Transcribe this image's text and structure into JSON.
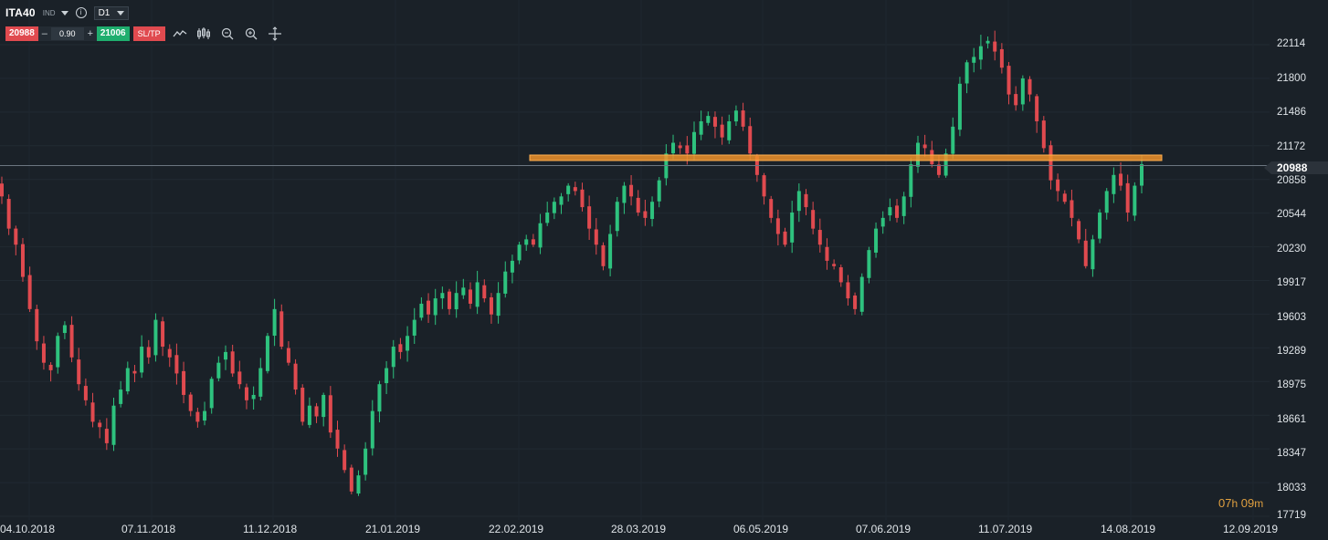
{
  "header": {
    "symbol": "ITA40",
    "symbol_type": "IND",
    "timeframe": "D1",
    "info_symbol": "i"
  },
  "trade_panel": {
    "sell_price": "20988",
    "minus": "–",
    "lot_size": "0.90",
    "plus": "+",
    "buy_price": "21006",
    "sltp_label": "SL/TP"
  },
  "toolbar_icons": [
    "line-chart-icon",
    "candlestick-icon",
    "zoom-out-icon",
    "zoom-in-icon",
    "crosshair-icon"
  ],
  "price_axis": {
    "labels": [
      "22114",
      "21800",
      "21486",
      "21172",
      "20858",
      "20544",
      "20230",
      "19917",
      "19603",
      "19289",
      "18975",
      "18661",
      "18347",
      "18033",
      "17719"
    ],
    "current_price": "20988"
  },
  "time_axis": {
    "labels": [
      "04.10.2018",
      "07.11.2018",
      "11.12.2018",
      "21.01.2019",
      "22.02.2019",
      "28.03.2019",
      "06.05.2019",
      "07.06.2019",
      "11.07.2019",
      "14.08.2019",
      "12.09.2019"
    ]
  },
  "countdown": {
    "hours": "07",
    "hours_unit": "h",
    "minutes": "09",
    "minutes_unit": "m"
  },
  "colors": {
    "background": "#1a2128",
    "bull": "#2ec27e",
    "bear": "#e04a4f",
    "resistance": "#f0922a",
    "price_line": "#6b7680"
  },
  "chart_data": {
    "type": "candlestick",
    "ylim": [
      17719,
      22300
    ],
    "resistance_level": 21060,
    "current_price": 20988,
    "closes": [
      20700,
      20400,
      20250,
      19950,
      19650,
      19350,
      19150,
      19080,
      19400,
      19500,
      19200,
      18950,
      18800,
      18600,
      18550,
      18400,
      18750,
      18900,
      19100,
      19050,
      19300,
      19200,
      19550,
      19300,
      19200,
      19050,
      18850,
      18700,
      18600,
      18700,
      19000,
      19150,
      19250,
      19050,
      18950,
      18800,
      18850,
      19100,
      19400,
      19650,
      19300,
      19150,
      18900,
      18600,
      18750,
      18650,
      18850,
      18500,
      18350,
      18150,
      17950,
      18100,
      18350,
      18700,
      18950,
      19100,
      19300,
      19250,
      19400,
      19550,
      19700,
      19600,
      19750,
      19800,
      19650,
      19800,
      19850,
      19700,
      19900,
      19750,
      19600,
      19800,
      20000,
      20100,
      20250,
      20300,
      20250,
      20450,
      20550,
      20650,
      20700,
      20800,
      20750,
      20600,
      20400,
      20250,
      20050,
      20350,
      20650,
      20800,
      20700,
      20550,
      20500,
      20650,
      20850,
      21100,
      21200,
      21150,
      21100,
      21300,
      21400,
      21450,
      21350,
      21250,
      21400,
      21500,
      21350,
      21100,
      20900,
      20700,
      20500,
      20350,
      20250,
      20550,
      20750,
      20600,
      20400,
      20250,
      20100,
      20050,
      19900,
      19750,
      19650,
      19950,
      20200,
      20400,
      20500,
      20600,
      20500,
      20700,
      21000,
      21200,
      21150,
      21000,
      20900,
      21100,
      21350,
      21750,
      21950,
      22000,
      22100,
      22150,
      22050,
      21900,
      21650,
      21550,
      21800,
      21650,
      21400,
      21150,
      20850,
      20750,
      20650,
      20500,
      20300,
      20050,
      20300,
      20550,
      20750,
      20900,
      20800,
      20550,
      20800,
      21000
    ]
  }
}
